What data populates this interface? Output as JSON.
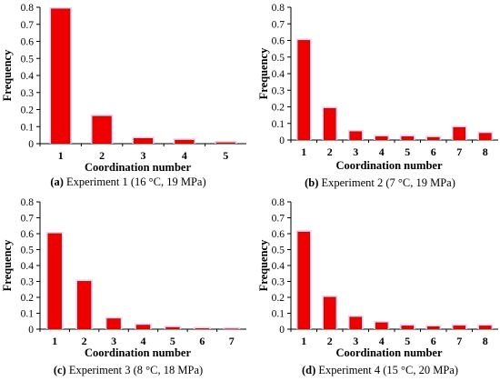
{
  "chart_data": [
    {
      "type": "bar",
      "ylabel": "Frequency",
      "xlabel": "Coordination number",
      "categories": [
        "1",
        "2",
        "3",
        "4",
        "5"
      ],
      "values": [
        0.79,
        0.16,
        0.03,
        0.02,
        0.005
      ],
      "ylim": [
        0,
        0.8
      ],
      "yticks": [
        "0",
        "0.1",
        "0.2",
        "0.3",
        "0.4",
        "0.5",
        "0.6",
        "0.7",
        "0.8"
      ],
      "caption_tag": "(a)",
      "caption_text": " Experiment 1 (16 °C, 19 MPa)",
      "bar_color": "#ee0000",
      "shadow_color": "#f7c6f2",
      "bar_edge": "#8b2500"
    },
    {
      "type": "bar",
      "ylabel": "Frequency",
      "xlabel": "Coordination number",
      "categories": [
        "1",
        "2",
        "3",
        "4",
        "5",
        "6",
        "7",
        "8"
      ],
      "values": [
        0.6,
        0.19,
        0.05,
        0.02,
        0.02,
        0.015,
        0.075,
        0.04
      ],
      "ylim": [
        0,
        0.8
      ],
      "yticks": [
        "0",
        "0.1",
        "0.2",
        "0.3",
        "0.4",
        "0.5",
        "0.6",
        "0.7",
        "0.8"
      ],
      "caption_tag": "(b)",
      "caption_text": " Experiment 2 (7 °C, 19 MPa)",
      "bar_color": "#ee0000",
      "shadow_color": "#f7c6f2",
      "bar_edge": "#8b2500"
    },
    {
      "type": "bar",
      "ylabel": "Frequency",
      "xlabel": "Coordination number",
      "categories": [
        "1",
        "2",
        "3",
        "4",
        "5",
        "6",
        "7"
      ],
      "values": [
        0.6,
        0.3,
        0.065,
        0.025,
        0.01,
        0.003,
        0.001
      ],
      "ylim": [
        0,
        0.8
      ],
      "yticks": [
        "0",
        "0.1",
        "0.2",
        "0.3",
        "0.4",
        "0.5",
        "0.6",
        "0.7",
        "0.8"
      ],
      "caption_tag": "(c)",
      "caption_text": " Experiment 3 (8 °C, 18 MPa)",
      "bar_color": "#ee0000",
      "shadow_color": "#f7c6f2",
      "bar_edge": "#8b2500"
    },
    {
      "type": "bar",
      "ylabel": "Frequency",
      "xlabel": "Coordination number",
      "categories": [
        "1",
        "2",
        "3",
        "4",
        "5",
        "6",
        "7",
        "8"
      ],
      "values": [
        0.61,
        0.2,
        0.075,
        0.04,
        0.02,
        0.015,
        0.02,
        0.02
      ],
      "ylim": [
        0,
        0.8
      ],
      "yticks": [
        "0",
        "0.1",
        "0.2",
        "0.3",
        "0.4",
        "0.5",
        "0.6",
        "0.7",
        "0.8"
      ],
      "caption_tag": "(d)",
      "caption_text": " Experiment 4 (15 °C, 20 MPa)",
      "bar_color": "#ee0000",
      "shadow_color": "#f7c6f2",
      "bar_edge": "#8b2500"
    }
  ]
}
